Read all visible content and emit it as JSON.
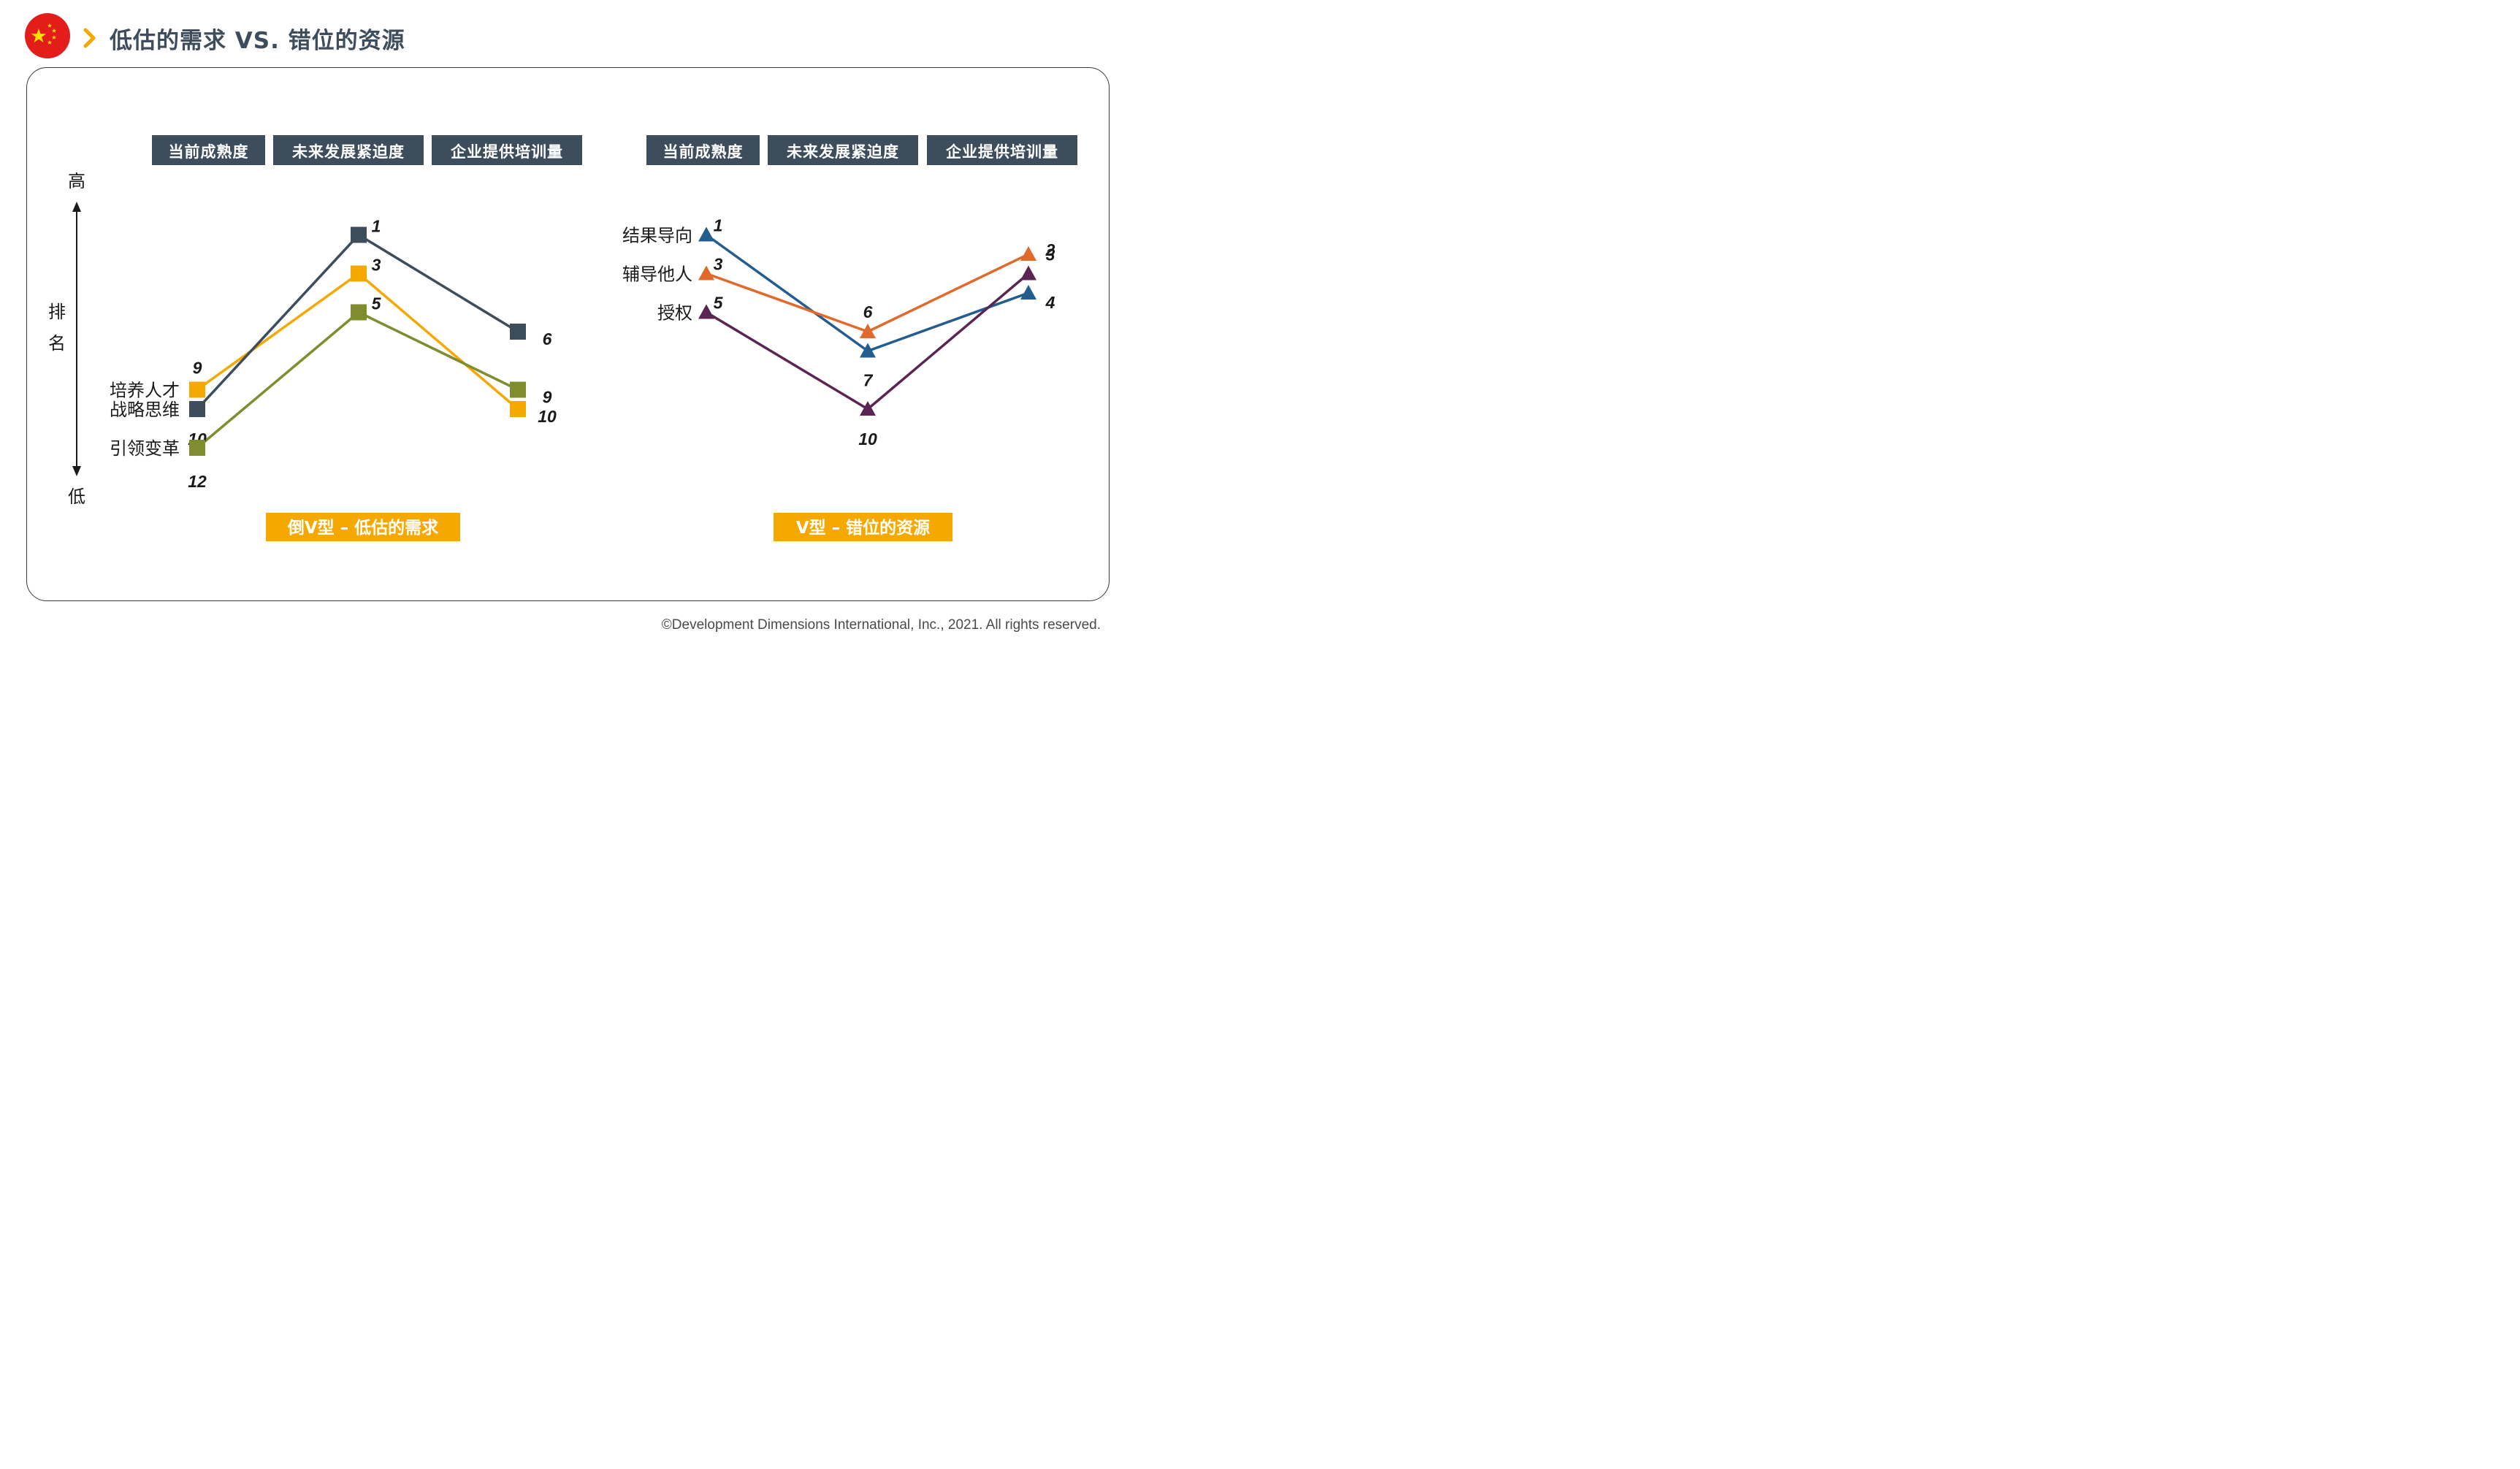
{
  "header": {
    "title": "低估的需求 VS. 错位的资源",
    "flag_icon": "china-flag-icon",
    "chevron_icon": "chevron-right-icon",
    "accent_color": "#f5a800",
    "title_color": "#3d4d5c"
  },
  "footer": {
    "copyright": "©Development Dimensions International, Inc., 2021. All rights reserved."
  },
  "chart_data": [
    {
      "type": "line",
      "caption": "倒V型 – 低估的需求",
      "categories": [
        "当前成熟度",
        "未来发展紧迫度",
        "企业提供培训量"
      ],
      "y_axis": {
        "high_label": "高",
        "low_label": "低",
        "title_chars": [
          "排",
          "名"
        ],
        "inverted": true
      },
      "marker": "square",
      "series": [
        {
          "name": "培养人才",
          "values": [
            9,
            3,
            10
          ],
          "value_labels": [
            "9",
            "3",
            "10"
          ],
          "color": "#f5a800"
        },
        {
          "name": "战略思维",
          "values": [
            10,
            1,
            6
          ],
          "value_labels": [
            "10",
            "1",
            "6"
          ],
          "color": "#3d4d5c"
        },
        {
          "name": "引领变革",
          "values": [
            12,
            5,
            9
          ],
          "value_labels": [
            "12",
            "5",
            "9"
          ],
          "color": "#7f8d2f"
        }
      ]
    },
    {
      "type": "line",
      "caption": "V型 – 错位的资源",
      "categories": [
        "当前成熟度",
        "未来发展紧迫度",
        "企业提供培训量"
      ],
      "marker": "triangle",
      "series": [
        {
          "name": "结果导向",
          "values": [
            1,
            7,
            4
          ],
          "value_labels": [
            "1",
            "7",
            "4"
          ],
          "color": "#235d8e"
        },
        {
          "name": "辅导他人",
          "values": [
            3,
            6,
            2
          ],
          "value_labels": [
            "3",
            "6",
            "2"
          ],
          "color": "#e06a2c"
        },
        {
          "name": "授权",
          "values": [
            5,
            10,
            3
          ],
          "value_labels": [
            "5",
            "10",
            "3"
          ],
          "color": "#5a2552"
        }
      ]
    }
  ],
  "style": {
    "header_box_color": "#3d4d5c",
    "caption_bg": "#f5a800",
    "label_color": "#1a1a1a"
  }
}
